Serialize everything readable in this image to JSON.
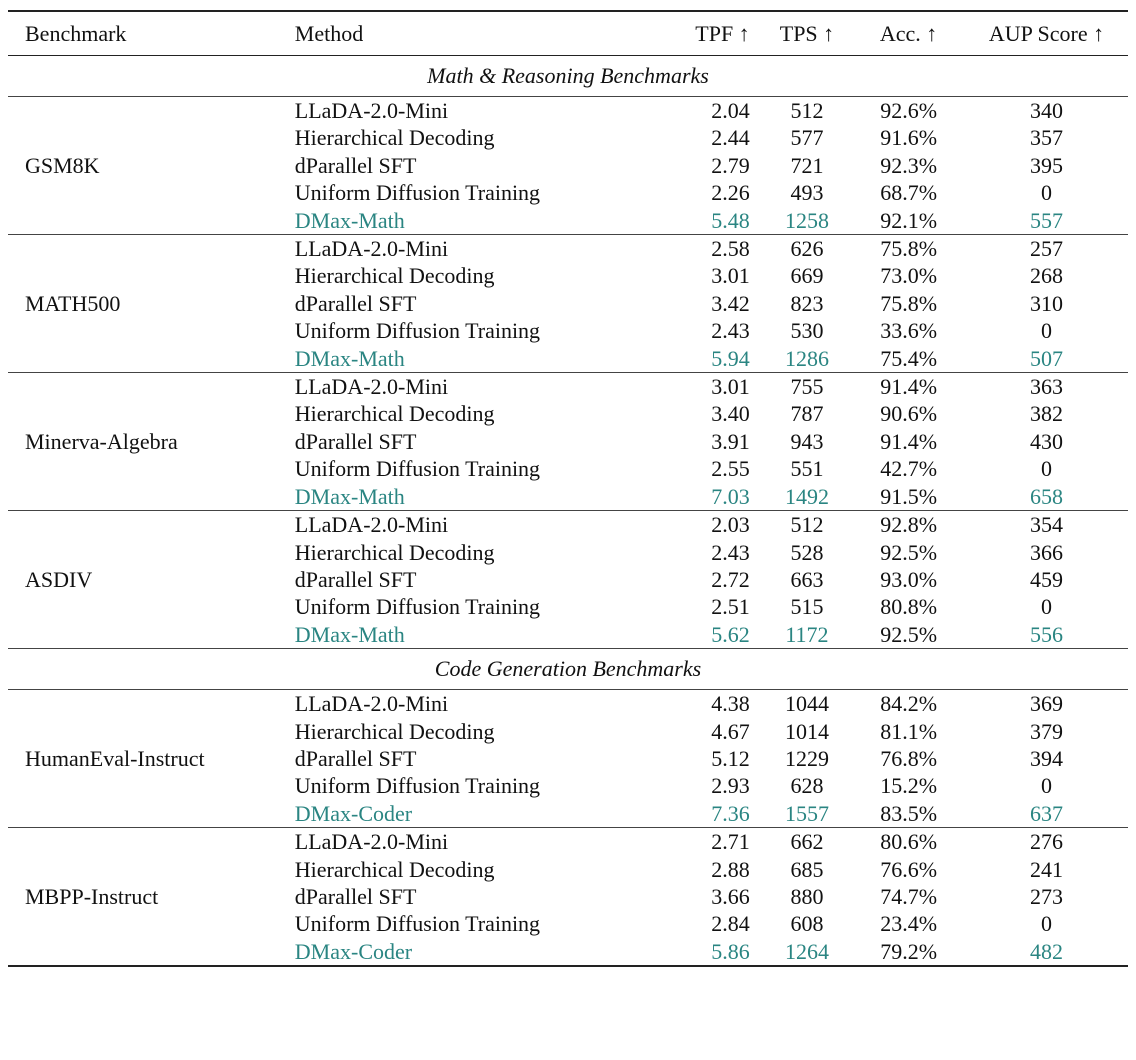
{
  "header": {
    "benchmark": "Benchmark",
    "method": "Method",
    "tpf": "TPF ↑",
    "tps": "TPS ↑",
    "acc": "Acc. ↑",
    "aup": "AUP Score ↑"
  },
  "colors": {
    "highlight": "#2a8582"
  },
  "sections": [
    {
      "title": "Math & Reasoning Benchmarks",
      "groups": [
        {
          "benchmark": "GSM8K",
          "rows": [
            {
              "method": "LLaDA-2.0-Mini",
              "tpf": "2.04",
              "tps": "512",
              "acc": "92.6%",
              "aup": "340",
              "highlight": false
            },
            {
              "method": "Hierarchical Decoding",
              "tpf": "2.44",
              "tps": "577",
              "acc": "91.6%",
              "aup": "357",
              "highlight": false
            },
            {
              "method": "dParallel SFT",
              "tpf": "2.79",
              "tps": "721",
              "acc": "92.3%",
              "aup": "395",
              "highlight": false
            },
            {
              "method": "Uniform Diffusion Training",
              "tpf": "2.26",
              "tps": "493",
              "acc": "68.7%",
              "aup": "0",
              "highlight": false
            },
            {
              "method": "DMax-Math",
              "tpf": "5.48",
              "tps": "1258",
              "acc": "92.1%",
              "aup": "557",
              "highlight": true
            }
          ]
        },
        {
          "benchmark": "MATH500",
          "rows": [
            {
              "method": "LLaDA-2.0-Mini",
              "tpf": "2.58",
              "tps": "626",
              "acc": "75.8%",
              "aup": "257",
              "highlight": false
            },
            {
              "method": "Hierarchical Decoding",
              "tpf": "3.01",
              "tps": "669",
              "acc": "73.0%",
              "aup": "268",
              "highlight": false
            },
            {
              "method": "dParallel SFT",
              "tpf": "3.42",
              "tps": "823",
              "acc": "75.8%",
              "aup": "310",
              "highlight": false
            },
            {
              "method": "Uniform Diffusion Training",
              "tpf": "2.43",
              "tps": "530",
              "acc": "33.6%",
              "aup": "0",
              "highlight": false
            },
            {
              "method": "DMax-Math",
              "tpf": "5.94",
              "tps": "1286",
              "acc": "75.4%",
              "aup": "507",
              "highlight": true
            }
          ]
        },
        {
          "benchmark": "Minerva-Algebra",
          "rows": [
            {
              "method": "LLaDA-2.0-Mini",
              "tpf": "3.01",
              "tps": "755",
              "acc": "91.4%",
              "aup": "363",
              "highlight": false
            },
            {
              "method": "Hierarchical Decoding",
              "tpf": "3.40",
              "tps": "787",
              "acc": "90.6%",
              "aup": "382",
              "highlight": false
            },
            {
              "method": "dParallel SFT",
              "tpf": "3.91",
              "tps": "943",
              "acc": "91.4%",
              "aup": "430",
              "highlight": false
            },
            {
              "method": "Uniform Diffusion Training",
              "tpf": "2.55",
              "tps": "551",
              "acc": "42.7%",
              "aup": "0",
              "highlight": false
            },
            {
              "method": "DMax-Math",
              "tpf": "7.03",
              "tps": "1492",
              "acc": "91.5%",
              "aup": "658",
              "highlight": true
            }
          ]
        },
        {
          "benchmark": "ASDIV",
          "rows": [
            {
              "method": "LLaDA-2.0-Mini",
              "tpf": "2.03",
              "tps": "512",
              "acc": "92.8%",
              "aup": "354",
              "highlight": false
            },
            {
              "method": "Hierarchical Decoding",
              "tpf": "2.43",
              "tps": "528",
              "acc": "92.5%",
              "aup": "366",
              "highlight": false
            },
            {
              "method": "dParallel SFT",
              "tpf": "2.72",
              "tps": "663",
              "acc": "93.0%",
              "aup": "459",
              "highlight": false
            },
            {
              "method": "Uniform Diffusion Training",
              "tpf": "2.51",
              "tps": "515",
              "acc": "80.8%",
              "aup": "0",
              "highlight": false
            },
            {
              "method": "DMax-Math",
              "tpf": "5.62",
              "tps": "1172",
              "acc": "92.5%",
              "aup": "556",
              "highlight": true
            }
          ]
        }
      ]
    },
    {
      "title": "Code Generation Benchmarks",
      "groups": [
        {
          "benchmark": "HumanEval-Instruct",
          "rows": [
            {
              "method": "LLaDA-2.0-Mini",
              "tpf": "4.38",
              "tps": "1044",
              "acc": "84.2%",
              "aup": "369",
              "highlight": false
            },
            {
              "method": "Hierarchical Decoding",
              "tpf": "4.67",
              "tps": "1014",
              "acc": "81.1%",
              "aup": "379",
              "highlight": false
            },
            {
              "method": "dParallel SFT",
              "tpf": "5.12",
              "tps": "1229",
              "acc": "76.8%",
              "aup": "394",
              "highlight": false
            },
            {
              "method": "Uniform Diffusion Training",
              "tpf": "2.93",
              "tps": "628",
              "acc": "15.2%",
              "aup": "0",
              "highlight": false
            },
            {
              "method": "DMax-Coder",
              "tpf": "7.36",
              "tps": "1557",
              "acc": "83.5%",
              "aup": "637",
              "highlight": true
            }
          ]
        },
        {
          "benchmark": "MBPP-Instruct",
          "rows": [
            {
              "method": "LLaDA-2.0-Mini",
              "tpf": "2.71",
              "tps": "662",
              "acc": "80.6%",
              "aup": "276",
              "highlight": false
            },
            {
              "method": "Hierarchical Decoding",
              "tpf": "2.88",
              "tps": "685",
              "acc": "76.6%",
              "aup": "241",
              "highlight": false
            },
            {
              "method": "dParallel SFT",
              "tpf": "3.66",
              "tps": "880",
              "acc": "74.7%",
              "aup": "273",
              "highlight": false
            },
            {
              "method": "Uniform Diffusion Training",
              "tpf": "2.84",
              "tps": "608",
              "acc": "23.4%",
              "aup": "0",
              "highlight": false
            },
            {
              "method": "DMax-Coder",
              "tpf": "5.86",
              "tps": "1264",
              "acc": "79.2%",
              "aup": "482",
              "highlight": true
            }
          ]
        }
      ]
    }
  ]
}
